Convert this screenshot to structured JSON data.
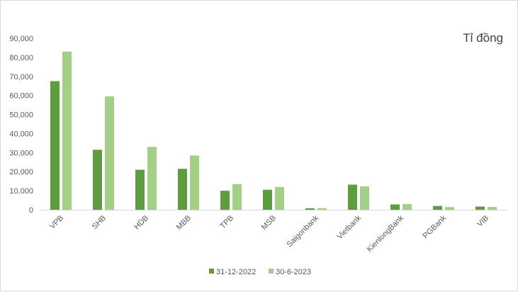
{
  "chart_data": {
    "type": "bar",
    "title": "Tỉ đồng",
    "xlabel": "",
    "ylabel": "",
    "categories": [
      "VPB",
      "SHB",
      "HDB",
      "MBB",
      "TPB",
      "MSB",
      "Saigonbank",
      "Vietbank",
      "KienlongBank",
      "PGBank",
      "VIB"
    ],
    "series": [
      {
        "name": "31-12-2022",
        "color": "#5e9c3f",
        "values": [
          67500,
          31500,
          21000,
          21500,
          10000,
          10500,
          800,
          13200,
          2800,
          2000,
          1700
        ]
      },
      {
        "name": "30-6-2023",
        "color": "#a3cf86",
        "values": [
          83000,
          59500,
          33000,
          28500,
          13500,
          12000,
          900,
          12300,
          3000,
          1400,
          1500
        ]
      }
    ],
    "ylim": [
      0,
      90000
    ],
    "yticks": [
      "0",
      "10,000",
      "20,000",
      "30,000",
      "40,000",
      "50,000",
      "60,000",
      "70,000",
      "80,000",
      "90,000"
    ],
    "grid": false,
    "legend": "bottom"
  }
}
